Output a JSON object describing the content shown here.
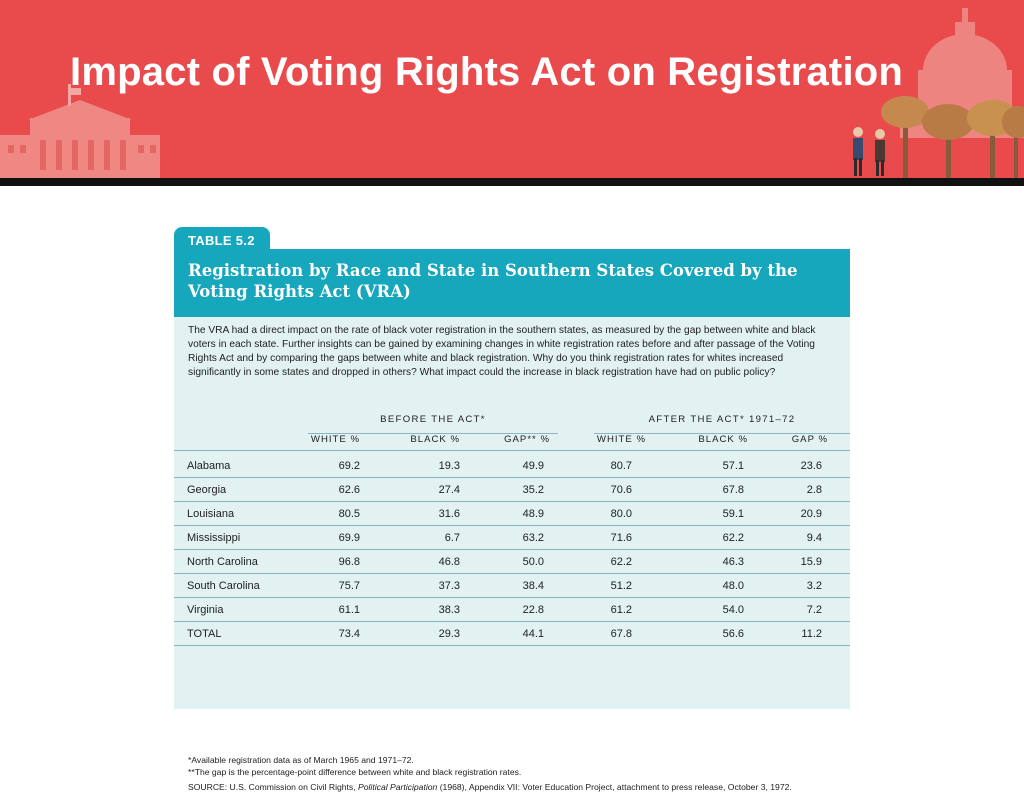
{
  "slide": {
    "title": "Impact of Voting Rights Act on Registration",
    "banner_color": "#e94a4c"
  },
  "table": {
    "tag": "TABLE 5.2",
    "title": "Registration by Race and State in Southern States Covered by the Voting Rights Act (VRA)",
    "intro": "The VRA had a direct impact on the rate of black voter registration in the southern states, as measured by the gap between white and black voters in each state. Further insights can be gained by examining changes in white registration rates before and after passage of the Voting Rights Act and by comparing the gaps between white and black registration. Why do you think registration rates for whites increased significantly in some states and dropped in others? What impact could the increase in black registration have had on public policy?",
    "accent_color": "#17a7bd",
    "body_color": "#e2f1f1",
    "group_before": "BEFORE THE ACT*",
    "group_after": "AFTER THE ACT* 1971–72",
    "columns": {
      "white_before": "WHITE %",
      "black_before": "BLACK %",
      "gap_before": "GAP** %",
      "white_after": "WHITE %",
      "black_after": "BLACK %",
      "gap_after": "GAP %"
    },
    "rows": [
      {
        "state": "Alabama",
        "white_before": "69.2",
        "black_before": "19.3",
        "gap_before": "49.9",
        "white_after": "80.7",
        "black_after": "57.1",
        "gap_after": "23.6"
      },
      {
        "state": "Georgia",
        "white_before": "62.6",
        "black_before": "27.4",
        "gap_before": "35.2",
        "white_after": "70.6",
        "black_after": "67.8",
        "gap_after": "2.8"
      },
      {
        "state": "Louisiana",
        "white_before": "80.5",
        "black_before": "31.6",
        "gap_before": "48.9",
        "white_after": "80.0",
        "black_after": "59.1",
        "gap_after": "20.9"
      },
      {
        "state": "Mississippi",
        "white_before": "69.9",
        "black_before": "6.7",
        "gap_before": "63.2",
        "white_after": "71.6",
        "black_after": "62.2",
        "gap_after": "9.4"
      },
      {
        "state": "North Carolina",
        "white_before": "96.8",
        "black_before": "46.8",
        "gap_before": "50.0",
        "white_after": "62.2",
        "black_after": "46.3",
        "gap_after": "15.9"
      },
      {
        "state": "South Carolina",
        "white_before": "75.7",
        "black_before": "37.3",
        "gap_before": "38.4",
        "white_after": "51.2",
        "black_after": "48.0",
        "gap_after": "3.2"
      },
      {
        "state": "Virginia",
        "white_before": "61.1",
        "black_before": "38.3",
        "gap_before": "22.8",
        "white_after": "61.2",
        "black_after": "54.0",
        "gap_after": "7.2"
      },
      {
        "state": "TOTAL",
        "white_before": "73.4",
        "black_before": "29.3",
        "gap_before": "44.1",
        "white_after": "67.8",
        "black_after": "56.6",
        "gap_after": "11.2"
      }
    ],
    "footnote_1": "*Available registration data as of March 1965 and 1971–72.",
    "footnote_2": "**The gap is the percentage-point difference between white and black registration rates.",
    "source_prefix": "SOURCE: U.S. Commission on Civil Rights, ",
    "source_title": "Political Participation",
    "source_suffix": " (1968), Appendix VII: Voter Education Project, attachment to press release, October 3, 1972."
  }
}
